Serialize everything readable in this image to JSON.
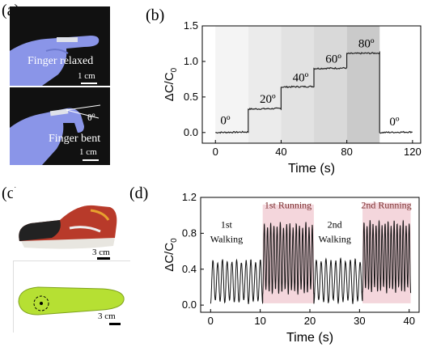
{
  "panels": {
    "a": "(a)",
    "b": "(b)",
    "c": "(c)",
    "d": "(d)"
  },
  "photos": {
    "relaxed_label": "Finger relaxed",
    "bent_label": "Finger bent",
    "angle_label": "θº",
    "scale_a1": "1 cm",
    "scale_a2": "1 cm",
    "scale_c1": "3 cm",
    "scale_c2": "3 cm"
  },
  "colors": {
    "glove": "#8a95e8",
    "shading": "#d8d8d8",
    "running_highlight": "#f4d6dc",
    "line": "#202020"
  },
  "chart_data": [
    {
      "type": "line",
      "panel": "(b)",
      "xlabel": "Time (s)",
      "ylabel": "ΔC/C0",
      "xlim": [
        -8,
        125
      ],
      "ylim": [
        -0.15,
        1.5
      ],
      "xticks": [
        0,
        40,
        80,
        120
      ],
      "yticks": [
        0.0,
        0.5,
        1.0,
        1.5
      ],
      "ytick_labels": [
        "0.0",
        "0.5",
        "1.0",
        "1.5"
      ],
      "steps": [
        {
          "label": "0º",
          "t0": 0,
          "t1": 20,
          "value": 0.0
        },
        {
          "label": "20º",
          "t0": 20,
          "t1": 40,
          "value": 0.33
        },
        {
          "label": "40º",
          "t0": 40,
          "t1": 60,
          "value": 0.64
        },
        {
          "label": "60º",
          "t0": 60,
          "t1": 80,
          "value": 0.9
        },
        {
          "label": "80º",
          "t0": 80,
          "t1": 100,
          "value": 1.11
        },
        {
          "label": "0º",
          "t0": 100,
          "t1": 120,
          "value": 0.0
        }
      ],
      "shaded_regions": [
        [
          0,
          20,
          0.1
        ],
        [
          20,
          40,
          0.25
        ],
        [
          40,
          60,
          0.4
        ],
        [
          60,
          80,
          0.55
        ],
        [
          80,
          100,
          0.8
        ]
      ]
    },
    {
      "type": "line",
      "panel": "(d)",
      "xlabel": "Time (s)",
      "ylabel": "ΔC/C0",
      "xlim": [
        -2,
        42
      ],
      "ylim": [
        -0.08,
        1.2
      ],
      "xticks": [
        0,
        10,
        20,
        30,
        40
      ],
      "yticks": [
        0.0,
        0.4,
        0.8,
        1.2
      ],
      "ytick_labels": [
        "0.0",
        "0.4",
        "0.8",
        "1.2"
      ],
      "segments": [
        {
          "label": "1st Walking",
          "t0": 0,
          "t1": 10.5,
          "low": 0.02,
          "high": 0.51,
          "cycles": 11,
          "highlight": false
        },
        {
          "label": "1st Running",
          "t0": 10.5,
          "t1": 20.8,
          "low": 0.12,
          "high": 0.92,
          "cycles": 16,
          "highlight": true
        },
        {
          "label": "2nd Walking",
          "t0": 20.8,
          "t1": 30.6,
          "low": 0.02,
          "high": 0.52,
          "cycles": 10,
          "highlight": false
        },
        {
          "label": "2nd Running",
          "t0": 30.6,
          "t1": 40.3,
          "low": 0.14,
          "high": 0.94,
          "cycles": 16,
          "highlight": true
        }
      ]
    }
  ]
}
